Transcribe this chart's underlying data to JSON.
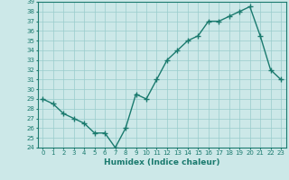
{
  "title": "",
  "xlabel": "Humidex (Indice chaleur)",
  "ylabel": "",
  "x": [
    0,
    1,
    2,
    3,
    4,
    5,
    6,
    7,
    8,
    9,
    10,
    11,
    12,
    13,
    14,
    15,
    16,
    17,
    18,
    19,
    20,
    21,
    22,
    23
  ],
  "y": [
    29,
    28.5,
    27.5,
    27,
    26.5,
    25.5,
    25.5,
    24,
    26,
    29.5,
    29,
    31,
    33,
    34,
    35,
    35.5,
    37,
    37,
    37.5,
    38,
    38.5,
    35.5,
    32,
    31
  ],
  "line_color": "#1a7a6e",
  "marker": "+",
  "bg_color": "#cce8e8",
  "grid_color": "#99cccc",
  "tick_color": "#1a7a6e",
  "ylim": [
    24,
    39
  ],
  "yticks": [
    24,
    25,
    26,
    27,
    28,
    29,
    30,
    31,
    32,
    33,
    34,
    35,
    36,
    37,
    38,
    39
  ],
  "xticks": [
    0,
    1,
    2,
    3,
    4,
    5,
    6,
    7,
    8,
    9,
    10,
    11,
    12,
    13,
    14,
    15,
    16,
    17,
    18,
    19,
    20,
    21,
    22,
    23
  ],
  "xtick_labels": [
    "0",
    "1",
    "2",
    "3",
    "4",
    "5",
    "6",
    "7",
    "8",
    "9",
    "10",
    "11",
    "12",
    "13",
    "14",
    "15",
    "16",
    "17",
    "18",
    "19",
    "20",
    "21",
    "22",
    "23"
  ],
  "ytick_labels": [
    "24",
    "25",
    "26",
    "27",
    "28",
    "29",
    "30",
    "31",
    "32",
    "33",
    "34",
    "35",
    "36",
    "37",
    "38",
    "39"
  ],
  "linewidth": 1.0,
  "markersize": 4,
  "xlabel_fontsize": 6.5,
  "tick_fontsize": 5.0
}
